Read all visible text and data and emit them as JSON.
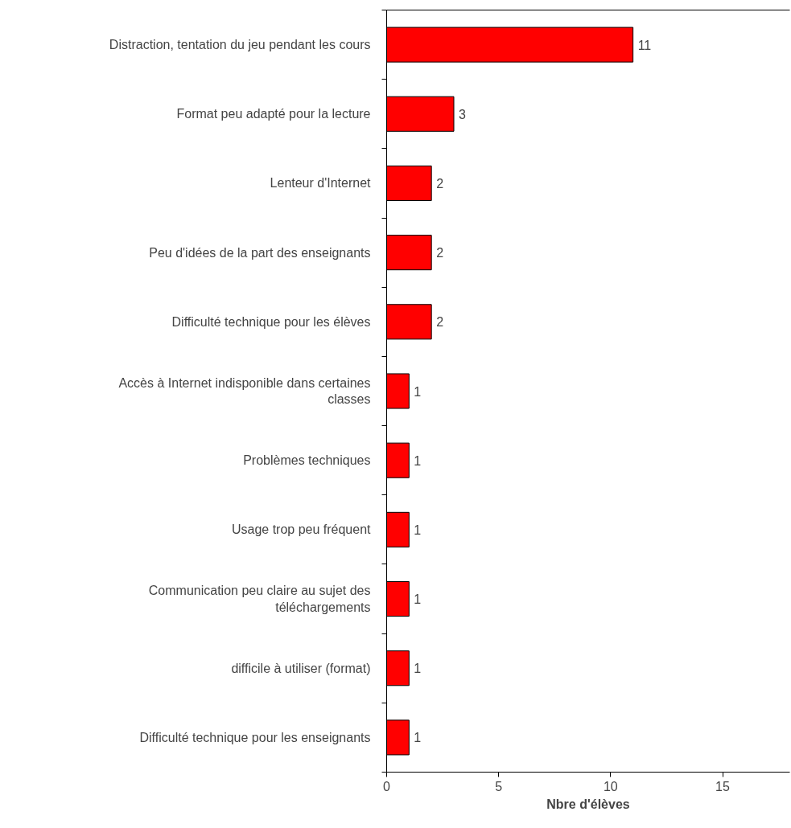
{
  "chart_data": {
    "type": "bar",
    "orientation": "horizontal",
    "xlabel": "Nbre d'élèves",
    "categories": [
      "Distraction, tentation du jeu pendant les cours",
      "Format peu adapté pour la lecture",
      "Lenteur d'Internet",
      "Peu d'idées de la part des enseignants",
      "Difficulté technique pour les élèves",
      "Accès à Internet indisponible dans certaines classes",
      "Problèmes techniques",
      "Usage trop peu fréquent",
      "Communication peu claire au sujet des téléchargements",
      "difficile à utiliser (format)",
      "Difficulté technique pour les enseignants"
    ],
    "values": [
      11,
      3,
      2,
      2,
      2,
      1,
      1,
      1,
      1,
      1,
      1
    ],
    "color": "#ff0000",
    "xlim": [
      0,
      18
    ],
    "xticks": [
      0,
      5,
      10,
      15
    ],
    "data_labels": true,
    "grid": false
  }
}
